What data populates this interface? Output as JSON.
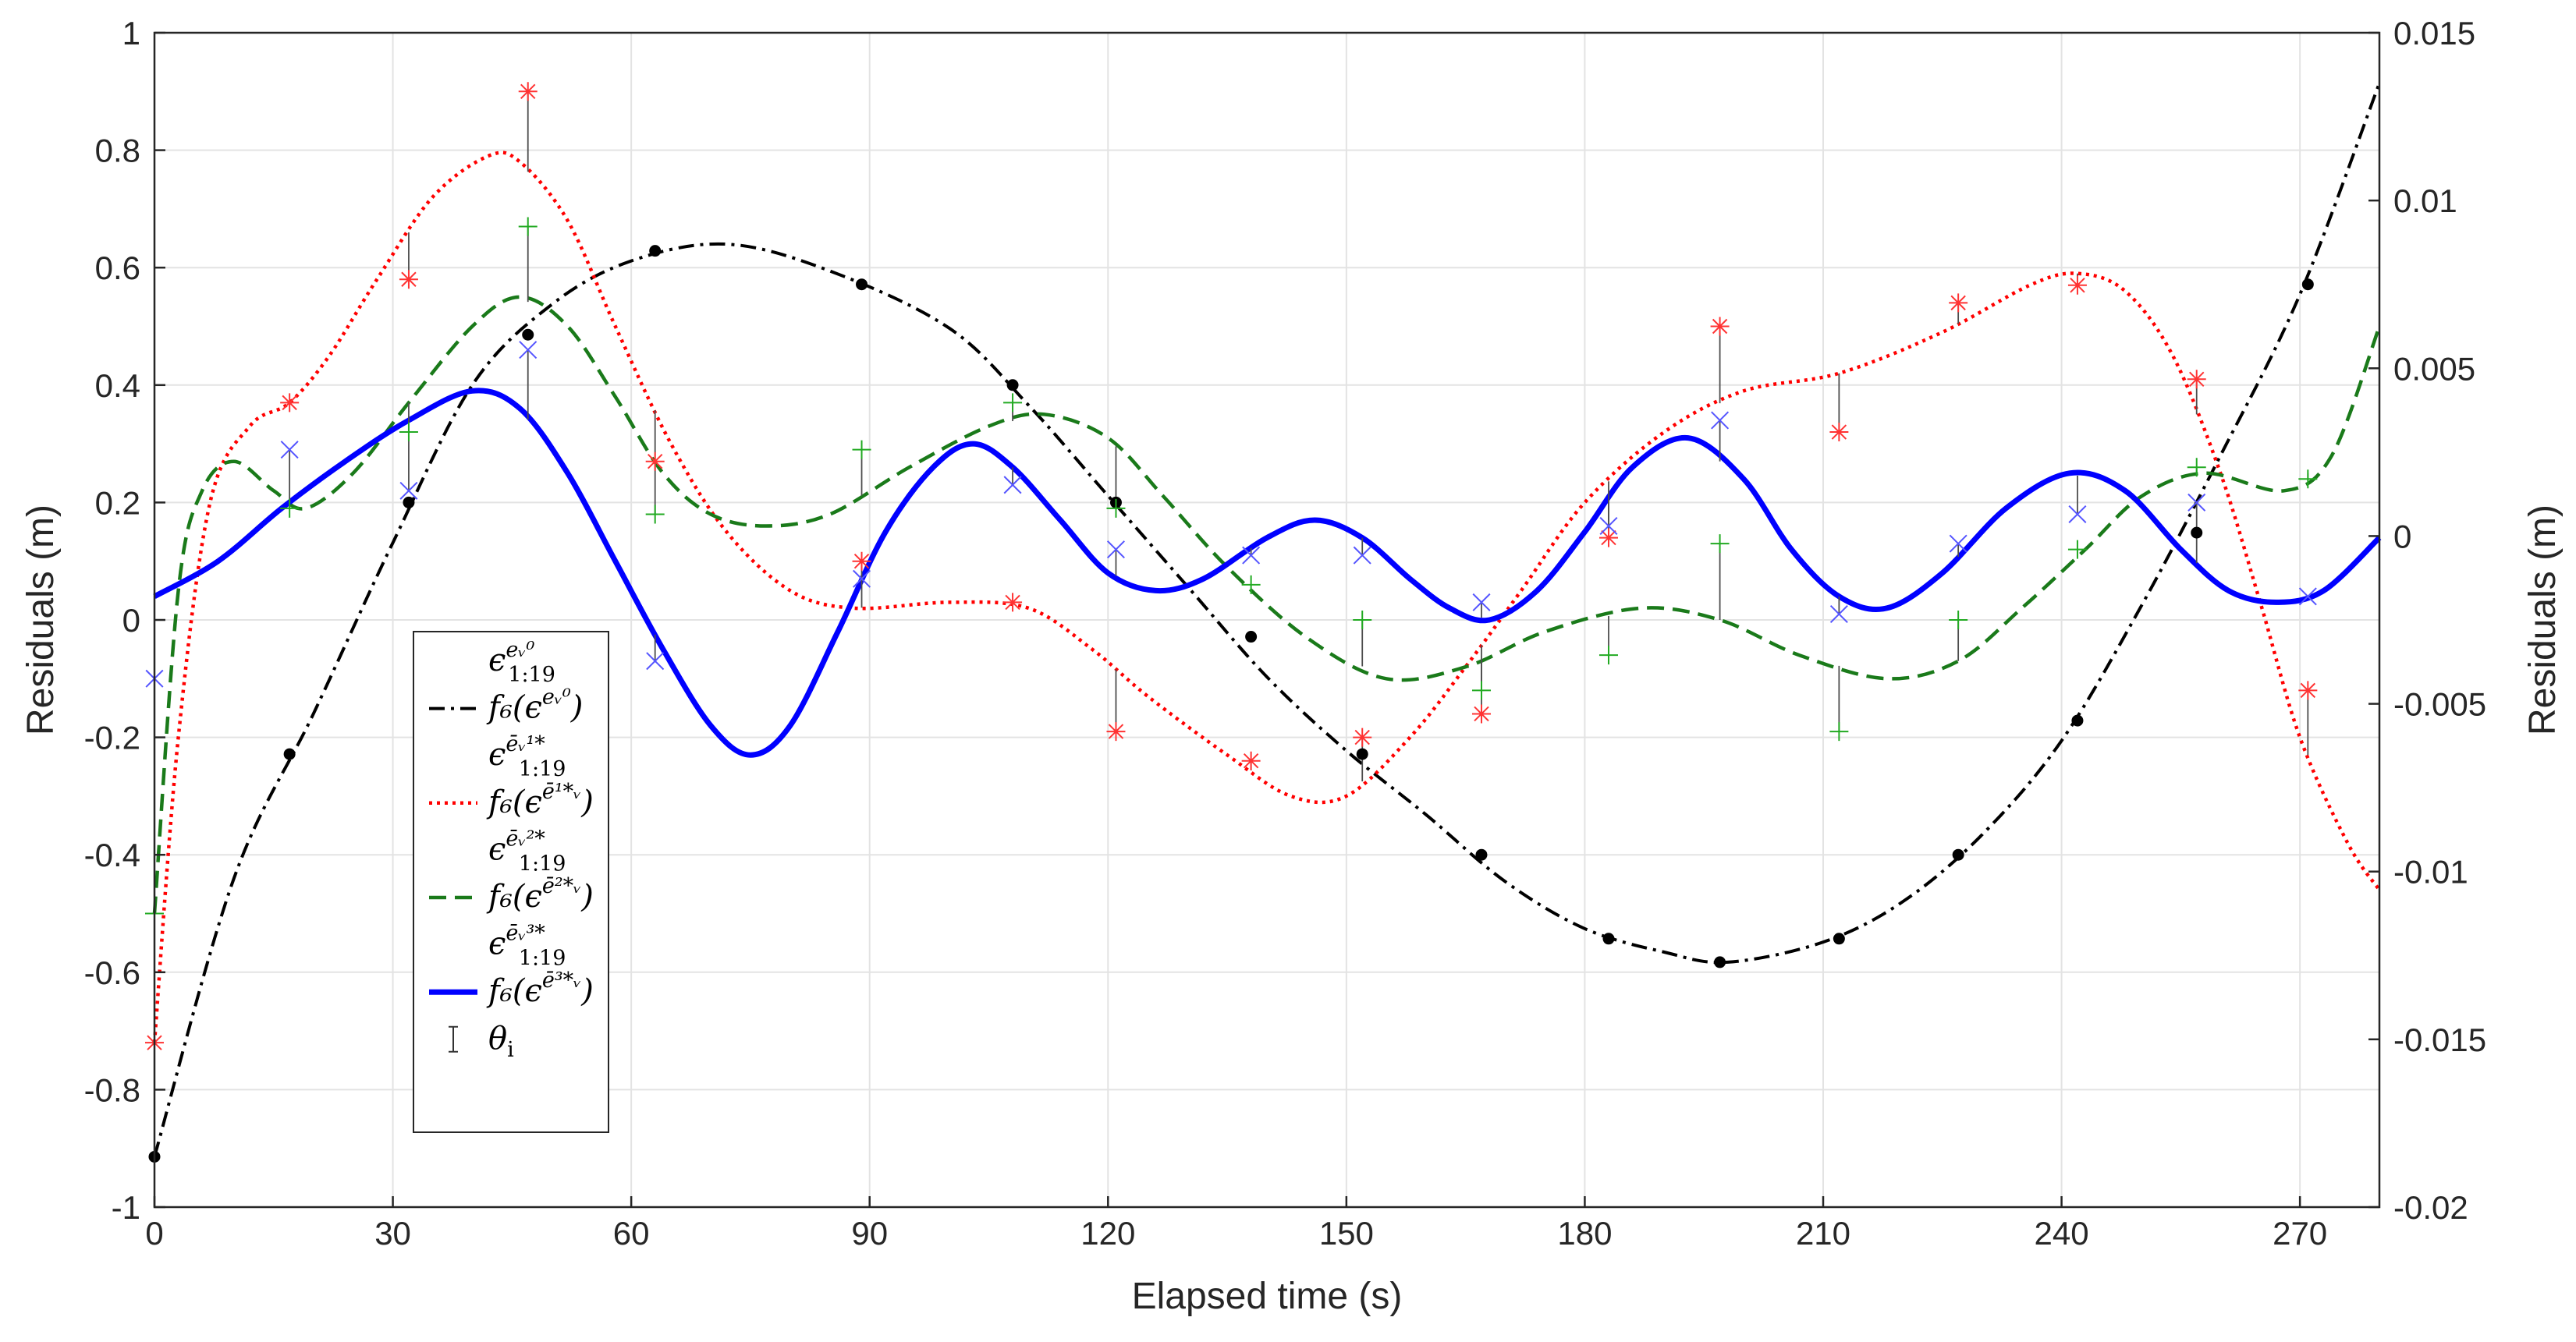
{
  "chart_data": {
    "type": "line",
    "title": "",
    "xlabel": "Elapsed time (s)",
    "ylabel": "Residuals (m)",
    "y2label": "Residuals (m)",
    "xlim": [
      0,
      280
    ],
    "ylim": [
      -1,
      1
    ],
    "y2lim": [
      -0.02,
      0.015
    ],
    "grid": true,
    "legend_position": "inside-lower-left",
    "x_ticks": [
      "0",
      "30",
      "60",
      "90",
      "120",
      "150",
      "180",
      "210",
      "240",
      "270"
    ],
    "y_ticks": [
      "-1",
      "-0.8",
      "-0.6",
      "-0.4",
      "-0.2",
      "0",
      "0.2",
      "0.4",
      "0.6",
      "0.8",
      "1"
    ],
    "y2_ticks": [
      "-0.02",
      "-0.015",
      "-0.01",
      "-0.005",
      "0",
      "0.005",
      "0.01",
      "0.015"
    ],
    "x": [
      0,
      17,
      32,
      47,
      63,
      89,
      108,
      121,
      138,
      152,
      167,
      183,
      197,
      212,
      227,
      242,
      257,
      271
    ],
    "series": [
      {
        "name": "eps0_points",
        "axis": "right",
        "style": "marker-dot",
        "color": "#000000",
        "legend": {
          "base": "ϵ",
          "sub": "1:19",
          "sup": "eᵥ⁰"
        },
        "values": [
          -0.0185,
          -0.0065,
          0.001,
          0.006,
          0.0085,
          0.0075,
          0.0045,
          0.001,
          -0.003,
          -0.0065,
          -0.0095,
          -0.012,
          -0.0127,
          -0.012,
          -0.0095,
          -0.0055,
          0.0001,
          0.0075
        ]
      },
      {
        "name": "eps0_fit",
        "axis": "right",
        "style": "dashdot",
        "color": "#000000",
        "legend": {
          "base": "f₆(ϵ",
          "sup": "eᵥ⁰",
          "tail": ")"
        },
        "curve": [
          [
            0,
            -0.0185
          ],
          [
            10,
            -0.0102
          ],
          [
            20,
            -0.0053
          ],
          [
            30,
            -0.0002
          ],
          [
            40,
            0.0045
          ],
          [
            50,
            0.0069
          ],
          [
            60,
            0.0082
          ],
          [
            72,
            0.0087
          ],
          [
            85,
            0.0079
          ],
          [
            100,
            0.0062
          ],
          [
            110,
            0.0039
          ],
          [
            120,
            0.0012
          ],
          [
            130,
            -0.0015
          ],
          [
            140,
            -0.0042
          ],
          [
            150,
            -0.0064
          ],
          [
            160,
            -0.0083
          ],
          [
            170,
            -0.0103
          ],
          [
            180,
            -0.0117
          ],
          [
            190,
            -0.0124
          ],
          [
            198,
            -0.0127
          ],
          [
            210,
            -0.0121
          ],
          [
            220,
            -0.0109
          ],
          [
            230,
            -0.0089
          ],
          [
            240,
            -0.0061
          ],
          [
            250,
            -0.0021
          ],
          [
            260,
            0.0024
          ],
          [
            270,
            0.0072
          ],
          [
            280,
            0.0135
          ]
        ]
      },
      {
        "name": "eps1_points",
        "axis": "left",
        "style": "marker-asterisk",
        "color": "#ff3333",
        "legend": {
          "base": "ϵ",
          "sub": "1:19",
          "sup": "ēᵥ¹*"
        },
        "values": [
          -0.72,
          0.37,
          0.58,
          0.9,
          0.27,
          0.1,
          0.03,
          -0.19,
          -0.24,
          -0.2,
          -0.16,
          0.14,
          0.5,
          0.32,
          0.54,
          0.57,
          0.41,
          -0.12
        ]
      },
      {
        "name": "eps1_fit",
        "axis": "left",
        "style": "dotted",
        "color": "#ff0000",
        "legend": {
          "base": "f₆(ϵ",
          "sup": "ē¹*ᵥ",
          "tail": ")"
        },
        "curve": [
          [
            0,
            -0.72
          ],
          [
            3,
            -0.2
          ],
          [
            7,
            0.2
          ],
          [
            12,
            0.33
          ],
          [
            17,
            0.37
          ],
          [
            22,
            0.45
          ],
          [
            28,
            0.58
          ],
          [
            35,
            0.72
          ],
          [
            42,
            0.79
          ],
          [
            46,
            0.78
          ],
          [
            52,
            0.68
          ],
          [
            58,
            0.5
          ],
          [
            65,
            0.3
          ],
          [
            72,
            0.15
          ],
          [
            80,
            0.05
          ],
          [
            88,
            0.02
          ],
          [
            100,
            0.03
          ],
          [
            110,
            0.02
          ],
          [
            118,
            -0.05
          ],
          [
            125,
            -0.13
          ],
          [
            135,
            -0.23
          ],
          [
            143,
            -0.3
          ],
          [
            150,
            -0.3
          ],
          [
            158,
            -0.2
          ],
          [
            165,
            -0.08
          ],
          [
            172,
            0.05
          ],
          [
            180,
            0.2
          ],
          [
            190,
            0.32
          ],
          [
            200,
            0.39
          ],
          [
            212,
            0.42
          ],
          [
            225,
            0.49
          ],
          [
            236,
            0.57
          ],
          [
            242,
            0.59
          ],
          [
            248,
            0.56
          ],
          [
            254,
            0.45
          ],
          [
            260,
            0.25
          ],
          [
            265,
            0.03
          ],
          [
            270,
            -0.2
          ],
          [
            276,
            -0.38
          ],
          [
            280,
            -0.46
          ]
        ]
      },
      {
        "name": "eps2_points",
        "axis": "left",
        "style": "marker-plus",
        "color": "#22aa22",
        "legend": {
          "base": "ϵ",
          "sub": "1:19",
          "sup": "ēᵥ²*"
        },
        "values": [
          -0.5,
          0.19,
          0.32,
          0.67,
          0.18,
          0.29,
          0.37,
          0.19,
          0.06,
          0.0,
          -0.12,
          -0.06,
          0.13,
          -0.19,
          0.0,
          0.12,
          0.26,
          0.24
        ]
      },
      {
        "name": "eps2_fit",
        "axis": "left",
        "style": "dashed",
        "color": "#1a7a1a",
        "legend": {
          "base": "f₆(ϵ",
          "sup": "ē²*ᵥ",
          "tail": ")"
        },
        "curve": [
          [
            0,
            -0.5
          ],
          [
            3,
            0.05
          ],
          [
            6,
            0.22
          ],
          [
            10,
            0.27
          ],
          [
            15,
            0.22
          ],
          [
            19,
            0.19
          ],
          [
            25,
            0.25
          ],
          [
            32,
            0.37
          ],
          [
            40,
            0.5
          ],
          [
            46,
            0.55
          ],
          [
            52,
            0.5
          ],
          [
            58,
            0.38
          ],
          [
            64,
            0.25
          ],
          [
            70,
            0.18
          ],
          [
            77,
            0.16
          ],
          [
            85,
            0.18
          ],
          [
            95,
            0.26
          ],
          [
            105,
            0.33
          ],
          [
            112,
            0.35
          ],
          [
            120,
            0.31
          ],
          [
            127,
            0.21
          ],
          [
            135,
            0.09
          ],
          [
            145,
            -0.03
          ],
          [
            155,
            -0.1
          ],
          [
            165,
            -0.08
          ],
          [
            175,
            -0.02
          ],
          [
            187,
            0.02
          ],
          [
            197,
            0.0
          ],
          [
            207,
            -0.06
          ],
          [
            218,
            -0.1
          ],
          [
            227,
            -0.07
          ],
          [
            235,
            0.02
          ],
          [
            243,
            0.12
          ],
          [
            250,
            0.21
          ],
          [
            258,
            0.25
          ],
          [
            268,
            0.22
          ],
          [
            274,
            0.28
          ],
          [
            280,
            0.5
          ]
        ]
      },
      {
        "name": "eps3_points",
        "axis": "left",
        "style": "marker-x",
        "color": "#5555ff",
        "legend": {
          "base": "ϵ",
          "sub": "1:19",
          "sup": "ēᵥ³*"
        },
        "values": [
          -0.1,
          0.29,
          0.22,
          0.46,
          -0.07,
          0.07,
          0.23,
          0.12,
          0.11,
          0.11,
          0.03,
          0.16,
          0.34,
          0.01,
          0.13,
          0.18,
          0.2,
          0.04
        ]
      },
      {
        "name": "eps3_fit",
        "axis": "left",
        "style": "solid",
        "color": "#0000ff",
        "legend": {
          "base": "f₆(ϵ",
          "sup": "ē³*ᵥ",
          "tail": ")"
        },
        "curve": [
          [
            0,
            0.04
          ],
          [
            8,
            0.1
          ],
          [
            16,
            0.19
          ],
          [
            24,
            0.27
          ],
          [
            32,
            0.34
          ],
          [
            40,
            0.39
          ],
          [
            46,
            0.36
          ],
          [
            52,
            0.25
          ],
          [
            58,
            0.1
          ],
          [
            64,
            -0.05
          ],
          [
            70,
            -0.18
          ],
          [
            75,
            -0.23
          ],
          [
            80,
            -0.18
          ],
          [
            86,
            -0.02
          ],
          [
            92,
            0.15
          ],
          [
            98,
            0.26
          ],
          [
            103,
            0.3
          ],
          [
            108,
            0.26
          ],
          [
            114,
            0.17
          ],
          [
            120,
            0.08
          ],
          [
            126,
            0.05
          ],
          [
            132,
            0.07
          ],
          [
            140,
            0.14
          ],
          [
            146,
            0.17
          ],
          [
            152,
            0.14
          ],
          [
            158,
            0.07
          ],
          [
            163,
            0.02
          ],
          [
            168,
            0.0
          ],
          [
            174,
            0.05
          ],
          [
            180,
            0.15
          ],
          [
            186,
            0.26
          ],
          [
            193,
            0.31
          ],
          [
            200,
            0.24
          ],
          [
            206,
            0.12
          ],
          [
            212,
            0.04
          ],
          [
            218,
            0.02
          ],
          [
            225,
            0.08
          ],
          [
            233,
            0.19
          ],
          [
            241,
            0.25
          ],
          [
            248,
            0.22
          ],
          [
            255,
            0.12
          ],
          [
            261,
            0.05
          ],
          [
            267,
            0.03
          ],
          [
            273,
            0.05
          ],
          [
            280,
            0.14
          ]
        ]
      },
      {
        "name": "theta",
        "axis": "left",
        "style": "errorbar",
        "color": "#333333",
        "legend": {
          "base": "θ",
          "sub": "i"
        }
      }
    ]
  }
}
